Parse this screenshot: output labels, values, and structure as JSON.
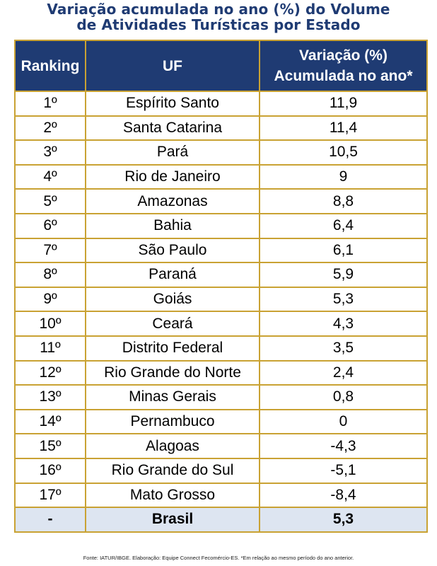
{
  "title_line1": "Variação acumulada no ano (%) do Volume",
  "title_line2": "de Atividades Turísticas por Estado",
  "headers": {
    "ranking": "Ranking",
    "uf": "UF",
    "variation_line1": "Variação (%)",
    "variation_line2": "Acumulada no ano*"
  },
  "rows": [
    {
      "rank": "1º",
      "uf": "Espírito Santo",
      "value": "11,9"
    },
    {
      "rank": "2º",
      "uf": "Santa Catarina",
      "value": "11,4"
    },
    {
      "rank": "3º",
      "uf": "Pará",
      "value": "10,5"
    },
    {
      "rank": "4º",
      "uf": "Rio de Janeiro",
      "value": "9"
    },
    {
      "rank": "5º",
      "uf": "Amazonas",
      "value": "8,8"
    },
    {
      "rank": "6º",
      "uf": "Bahia",
      "value": "6,4"
    },
    {
      "rank": "7º",
      "uf": "São Paulo",
      "value": "6,1"
    },
    {
      "rank": "8º",
      "uf": "Paraná",
      "value": "5,9"
    },
    {
      "rank": "9º",
      "uf": "Goiás",
      "value": "5,3"
    },
    {
      "rank": "10º",
      "uf": "Ceará",
      "value": "4,3"
    },
    {
      "rank": "11º",
      "uf": "Distrito Federal",
      "value": "3,5"
    },
    {
      "rank": "12º",
      "uf": "Rio Grande do Norte",
      "value": "2,4"
    },
    {
      "rank": "13º",
      "uf": "Minas Gerais",
      "value": "0,8"
    },
    {
      "rank": "14º",
      "uf": "Pernambuco",
      "value": "0"
    },
    {
      "rank": "15º",
      "uf": "Alagoas",
      "value": "-4,3"
    },
    {
      "rank": "16º",
      "uf": "Rio Grande do Sul",
      "value": "-5,1"
    },
    {
      "rank": "17º",
      "uf": "Mato Grosso",
      "value": "-8,4"
    }
  ],
  "total": {
    "rank": "-",
    "uf": "Brasil",
    "value": "5,3"
  },
  "source": "Fonte: IATUR/IBGE. Elaboração: Equipe Connect Fecomércio-ES. *Em relação ao mesmo período do ano anterior.",
  "colors": {
    "header_bg": "#1f3b73",
    "border": "#c9a233",
    "total_bg": "#dde5f1",
    "title": "#1f3b73"
  },
  "chart_data": {
    "type": "table",
    "columns": [
      "Ranking",
      "UF",
      "Variação (%) Acumulada no ano*"
    ],
    "rows": [
      [
        "1º",
        "Espírito Santo",
        11.9
      ],
      [
        "2º",
        "Santa Catarina",
        11.4
      ],
      [
        "3º",
        "Pará",
        10.5
      ],
      [
        "4º",
        "Rio de Janeiro",
        9
      ],
      [
        "5º",
        "Amazonas",
        8.8
      ],
      [
        "6º",
        "Bahia",
        6.4
      ],
      [
        "7º",
        "São Paulo",
        6.1
      ],
      [
        "8º",
        "Paraná",
        5.9
      ],
      [
        "9º",
        "Goiás",
        5.3
      ],
      [
        "10º",
        "Ceará",
        4.3
      ],
      [
        "11º",
        "Distrito Federal",
        3.5
      ],
      [
        "12º",
        "Rio Grande do Norte",
        2.4
      ],
      [
        "13º",
        "Minas Gerais",
        0.8
      ],
      [
        "14º",
        "Pernambuco",
        0
      ],
      [
        "15º",
        "Alagoas",
        -4.3
      ],
      [
        "16º",
        "Rio Grande do Sul",
        -5.1
      ],
      [
        "17º",
        "Mato Grosso",
        -8.4
      ],
      [
        "-",
        "Brasil",
        5.3
      ]
    ]
  }
}
